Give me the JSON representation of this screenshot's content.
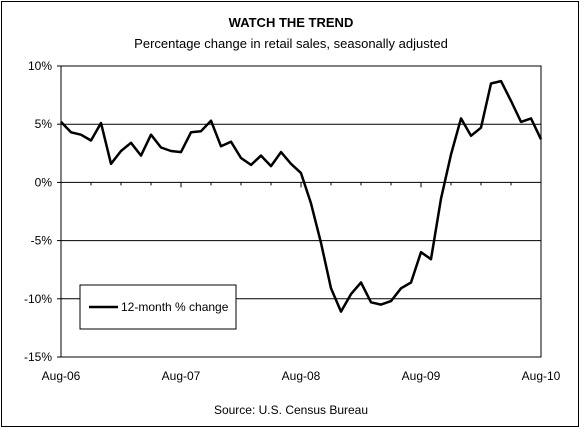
{
  "chart_data": {
    "type": "line",
    "title": "WATCH THE TREND",
    "subtitle": "Percentage change in retail sales, seasonally adjusted",
    "source": "Source: U.S. Census Bureau",
    "xlabel": "",
    "ylabel": "",
    "ylim": [
      -15,
      10
    ],
    "y_ticks": [
      10,
      5,
      0,
      -5,
      -10,
      -15
    ],
    "y_tick_labels": [
      "10%",
      "5%",
      "0%",
      "-5%",
      "-10%",
      "-15%"
    ],
    "x_tick_labels": [
      "Aug-06",
      "Aug-07",
      "Aug-08",
      "Aug-09",
      "Aug-10"
    ],
    "grid": "horizontal",
    "legend_position": "bottom-left",
    "series": [
      {
        "name": "12-month % change",
        "color": "#000000",
        "x": [
          "Aug-06",
          "Sep-06",
          "Oct-06",
          "Nov-06",
          "Dec-06",
          "Jan-07",
          "Feb-07",
          "Mar-07",
          "Apr-07",
          "May-07",
          "Jun-07",
          "Jul-07",
          "Aug-07",
          "Sep-07",
          "Oct-07",
          "Nov-07",
          "Dec-07",
          "Jan-08",
          "Feb-08",
          "Mar-08",
          "Apr-08",
          "May-08",
          "Jun-08",
          "Jul-08",
          "Aug-08",
          "Sep-08",
          "Oct-08",
          "Nov-08",
          "Dec-08",
          "Jan-09",
          "Feb-09",
          "Mar-09",
          "Apr-09",
          "May-09",
          "Jun-09",
          "Jul-09",
          "Aug-09",
          "Sep-09",
          "Oct-09",
          "Nov-09",
          "Dec-09",
          "Jan-10",
          "Feb-10",
          "Mar-10",
          "Apr-10",
          "May-10",
          "Jun-10",
          "Jul-10",
          "Aug-10"
        ],
        "values": [
          5.2,
          4.3,
          4.1,
          3.6,
          5.1,
          1.6,
          2.7,
          3.4,
          2.3,
          4.1,
          3.0,
          2.7,
          2.6,
          4.3,
          4.4,
          5.3,
          3.1,
          3.5,
          2.1,
          1.5,
          2.3,
          1.4,
          2.6,
          1.6,
          0.8,
          -1.8,
          -5.2,
          -9.1,
          -11.1,
          -9.6,
          -8.6,
          -10.3,
          -10.5,
          -10.2,
          -9.1,
          -8.6,
          -6.0,
          -6.6,
          -1.4,
          2.4,
          5.5,
          4.0,
          4.7,
          8.5,
          8.7,
          7.0,
          5.2,
          5.5,
          3.7
        ]
      }
    ]
  }
}
